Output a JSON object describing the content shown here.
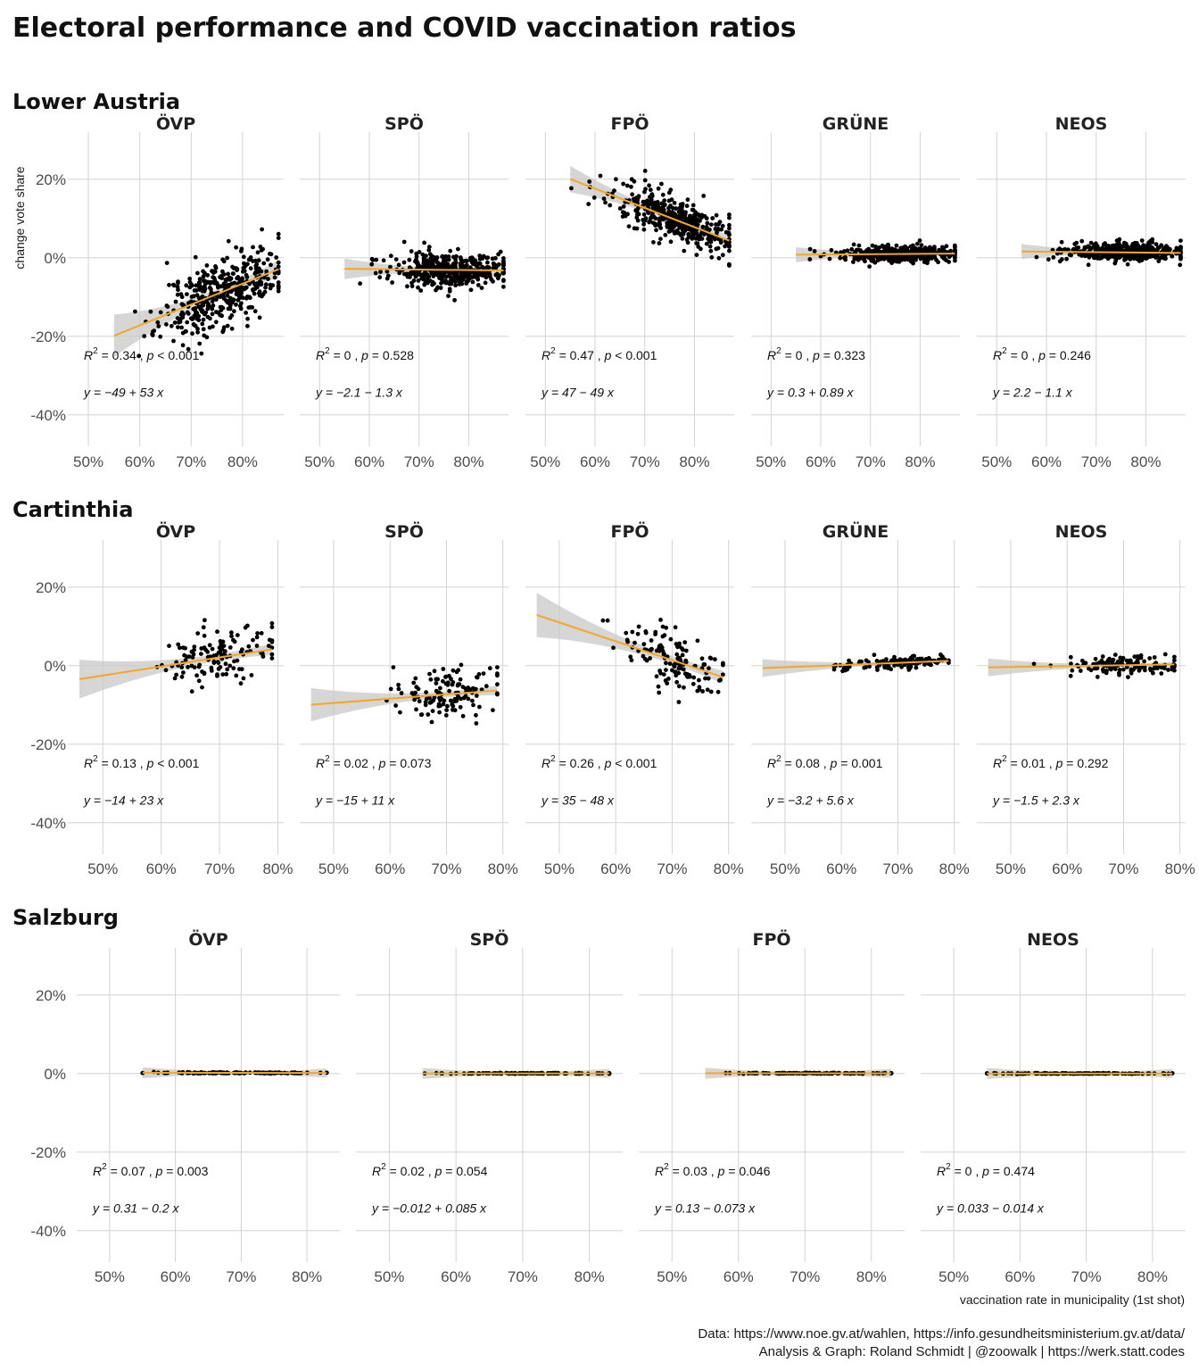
{
  "title": "Electoral performance and COVID vaccination ratios",
  "caption_line1": "Data: https://www.noe.gv.at/wahlen, https://info.gesundheitsministerium.gv.at/data/",
  "caption_line2": "Analysis & Graph: Roland Schmidt | @zoowalk | https://werk.statt.codes",
  "colors": {
    "point": "#000000",
    "fit": "#f5a623",
    "ribbon": "#c8c8c8",
    "grid": "#d3d3d3"
  },
  "chart_data": [
    {
      "type": "scatter",
      "region": "Lower Austria",
      "xlabel": "",
      "ylabel": "change vote share",
      "xticks": [
        "50%",
        "60%",
        "70%",
        "80%"
      ],
      "yticks": [
        "20%",
        "0%",
        "-20%",
        "-40%"
      ],
      "xlim": [
        0.46,
        0.88
      ],
      "ylim": [
        -0.48,
        0.32
      ],
      "panels": [
        {
          "party": "ÖVP",
          "r2": "0.34",
          "p": "< 0.001",
          "eq": "y = −49 + 53 x",
          "intercept": -0.49,
          "slope": 0.53,
          "x_range": [
            0.55,
            0.87
          ],
          "cloud": {
            "cx": 0.76,
            "sx": 0.06,
            "sy": 0.045,
            "n": 420
          }
        },
        {
          "party": "SPÖ",
          "r2": "0",
          "p": "= 0.528",
          "eq": "y = −2.1 − 1.3 x",
          "intercept": -0.021,
          "slope": -0.013,
          "x_range": [
            0.55,
            0.87
          ],
          "cloud": {
            "cx": 0.76,
            "sx": 0.06,
            "sy": 0.022,
            "n": 420
          }
        },
        {
          "party": "FPÖ",
          "r2": "0.47",
          "p": "< 0.001",
          "eq": "y = 47 − 49 x",
          "intercept": 0.47,
          "slope": -0.49,
          "x_range": [
            0.55,
            0.87
          ],
          "cloud": {
            "cx": 0.76,
            "sx": 0.06,
            "sy": 0.028,
            "n": 420
          }
        },
        {
          "party": "GRÜNE",
          "r2": "0",
          "p": "= 0.323",
          "eq": "y = 0.3 + 0.89 x",
          "intercept": 0.003,
          "slope": 0.0089,
          "x_range": [
            0.55,
            0.87
          ],
          "cloud": {
            "cx": 0.76,
            "sx": 0.06,
            "sy": 0.01,
            "n": 420
          }
        },
        {
          "party": "NEOS",
          "r2": "0",
          "p": "= 0.246",
          "eq": "y = 2.2 − 1.1 x",
          "intercept": 0.022,
          "slope": -0.011,
          "x_range": [
            0.55,
            0.87
          ],
          "cloud": {
            "cx": 0.76,
            "sx": 0.06,
            "sy": 0.011,
            "n": 420
          }
        }
      ]
    },
    {
      "type": "scatter",
      "region": "Cartinthia",
      "xlabel": "",
      "ylabel": "",
      "xticks": [
        "50%",
        "60%",
        "70%",
        "80%"
      ],
      "yticks": [
        "20%",
        "0%",
        "-20%",
        "-40%"
      ],
      "xlim": [
        0.44,
        0.81
      ],
      "ylim": [
        -0.48,
        0.32
      ],
      "panels": [
        {
          "party": "ÖVP",
          "r2": "0.13",
          "p": "< 0.001",
          "eq": "y = −14 + 23 x",
          "intercept": -0.14,
          "slope": 0.23,
          "x_range": [
            0.46,
            0.79
          ],
          "cloud": {
            "cx": 0.7,
            "sx": 0.05,
            "sy": 0.035,
            "n": 130
          }
        },
        {
          "party": "SPÖ",
          "r2": "0.02",
          "p": "= 0.073",
          "eq": "y = −15 + 11 x",
          "intercept": -0.15,
          "slope": 0.11,
          "x_range": [
            0.46,
            0.79
          ],
          "cloud": {
            "cx": 0.7,
            "sx": 0.05,
            "sy": 0.03,
            "n": 130
          }
        },
        {
          "party": "FPÖ",
          "r2": "0.26",
          "p": "< 0.001",
          "eq": "y = 35 − 48 x",
          "intercept": 0.35,
          "slope": -0.48,
          "x_range": [
            0.46,
            0.79
          ],
          "cloud": {
            "cx": 0.7,
            "sx": 0.05,
            "sy": 0.04,
            "n": 130
          }
        },
        {
          "party": "GRÜNE",
          "r2": "0.08",
          "p": "= 0.001",
          "eq": "y = −3.2 + 5.6 x",
          "intercept": -0.032,
          "slope": 0.056,
          "x_range": [
            0.46,
            0.79
          ],
          "cloud": {
            "cx": 0.7,
            "sx": 0.05,
            "sy": 0.009,
            "n": 130
          }
        },
        {
          "party": "NEOS",
          "r2": "0.01",
          "p": "= 0.292",
          "eq": "y = −1.5 + 2.3 x",
          "intercept": -0.015,
          "slope": 0.023,
          "x_range": [
            0.46,
            0.79
          ],
          "cloud": {
            "cx": 0.7,
            "sx": 0.05,
            "sy": 0.012,
            "n": 130
          }
        }
      ]
    },
    {
      "type": "scatter",
      "region": "Salzburg",
      "xlabel": "vaccination rate in municipality (1st shot)",
      "ylabel": "",
      "xticks": [
        "50%",
        "60%",
        "70%",
        "80%"
      ],
      "yticks": [
        "20%",
        "0%",
        "-20%",
        "-40%"
      ],
      "xlim": [
        0.45,
        0.85
      ],
      "ylim": [
        -0.48,
        0.32
      ],
      "panels": [
        {
          "party": "ÖVP",
          "r2": "0.07",
          "p": "= 0.003",
          "eq": "y = 0.31 − 0.2 x",
          "intercept": 0.0031,
          "slope": -0.002,
          "x_range": [
            0.55,
            0.83
          ],
          "cloud": {
            "cx": 0.7,
            "sx": 0.06,
            "sy": 0.0008,
            "n": 110
          }
        },
        {
          "party": "SPÖ",
          "r2": "0.02",
          "p": "= 0.054",
          "eq": "y = −0.012 + 0.085 x",
          "intercept": -0.00012,
          "slope": 0.00085,
          "x_range": [
            0.55,
            0.83
          ],
          "cloud": {
            "cx": 0.7,
            "sx": 0.06,
            "sy": 0.0006,
            "n": 110
          }
        },
        {
          "party": "FPÖ",
          "r2": "0.03",
          "p": "= 0.046",
          "eq": "y = 0.13 − 0.073 x",
          "intercept": 0.0013,
          "slope": -0.00073,
          "x_range": [
            0.55,
            0.83
          ],
          "cloud": {
            "cx": 0.7,
            "sx": 0.06,
            "sy": 0.0006,
            "n": 110
          }
        },
        {
          "party": "NEOS",
          "r2": "0",
          "p": "= 0.474",
          "eq": "y = 0.033 − 0.014 x",
          "intercept": 0.00033,
          "slope": -0.00014,
          "x_range": [
            0.55,
            0.83
          ],
          "cloud": {
            "cx": 0.7,
            "sx": 0.06,
            "sy": 0.0005,
            "n": 110
          }
        }
      ]
    }
  ]
}
